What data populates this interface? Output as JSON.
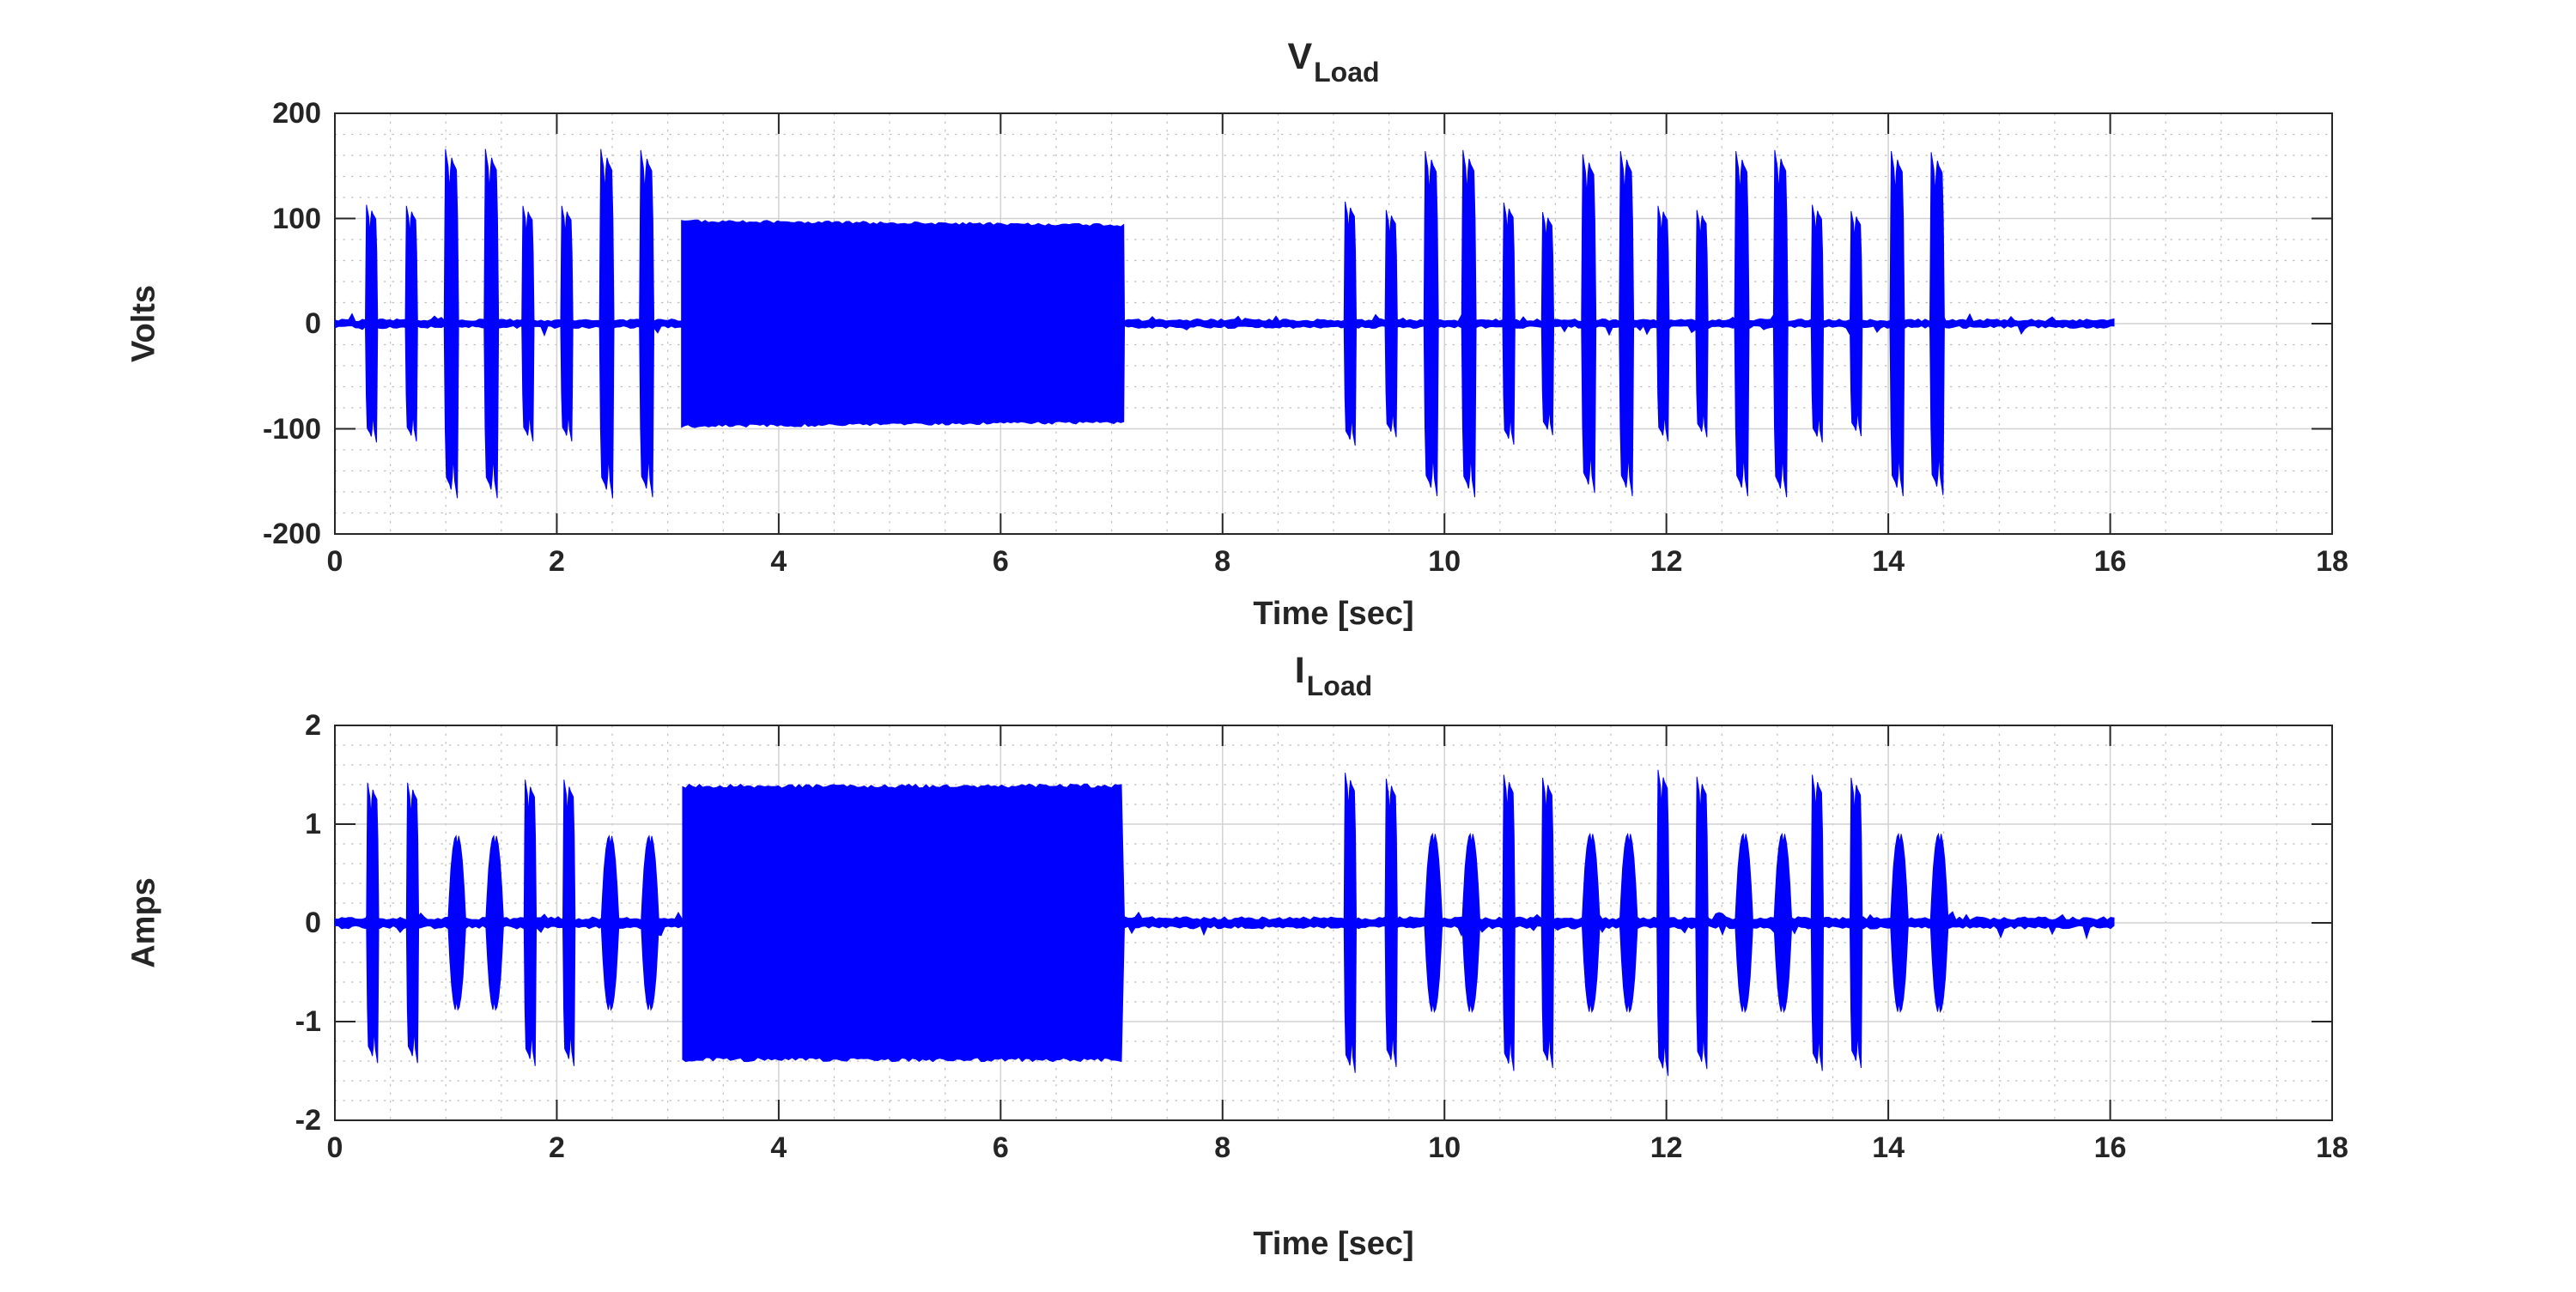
{
  "figure": {
    "background": "#ffffff",
    "trace_color": "#0000ff",
    "axis_color": "#262626",
    "text_color": "#252525",
    "major_grid_color": "#d2d2d2",
    "minor_grid_color": "#bfbfbf"
  },
  "chart_data": [
    {
      "type": "line",
      "title_main": "V",
      "title_sub": "Load",
      "xlabel": "Time [sec]",
      "ylabel": "Volts",
      "xlim": [
        0,
        18
      ],
      "ylim": [
        -200,
        200
      ],
      "xticks": [
        0,
        2,
        4,
        6,
        8,
        10,
        12,
        14,
        16,
        18
      ],
      "yticks": [
        200,
        100,
        0,
        -100,
        -200
      ],
      "x_minor_step": 0.5,
      "y_minor_step": 20,
      "grid": "on",
      "legend": "none",
      "series_name": "V_Load",
      "baseline": {
        "start": 0,
        "end": 16.05,
        "noise_amp": 4.5
      },
      "block": {
        "start": 3.12,
        "end": 7.12,
        "amp_start": 98,
        "amp_end": 94
      },
      "bursts": [
        {
          "t": 0.33,
          "a": 113,
          "w": 0.11,
          "shape": "notch"
        },
        {
          "t": 0.69,
          "a": 112,
          "w": 0.11,
          "shape": "notch"
        },
        {
          "t": 1.05,
          "a": 166,
          "w": 0.13,
          "shape": "notch"
        },
        {
          "t": 1.41,
          "a": 166,
          "w": 0.13,
          "shape": "notch"
        },
        {
          "t": 1.74,
          "a": 112,
          "w": 0.11,
          "shape": "notch"
        },
        {
          "t": 2.09,
          "a": 112,
          "w": 0.11,
          "shape": "notch"
        },
        {
          "t": 2.45,
          "a": 166,
          "w": 0.13,
          "shape": "notch"
        },
        {
          "t": 2.81,
          "a": 165,
          "w": 0.13,
          "shape": "notch"
        },
        {
          "t": 9.15,
          "a": 116,
          "w": 0.11,
          "shape": "notch"
        },
        {
          "t": 9.52,
          "a": 108,
          "w": 0.11,
          "shape": "notch"
        },
        {
          "t": 9.88,
          "a": 164,
          "w": 0.13,
          "shape": "notch"
        },
        {
          "t": 10.22,
          "a": 165,
          "w": 0.13,
          "shape": "notch"
        },
        {
          "t": 10.58,
          "a": 115,
          "w": 0.11,
          "shape": "notch"
        },
        {
          "t": 10.93,
          "a": 106,
          "w": 0.11,
          "shape": "notch"
        },
        {
          "t": 11.3,
          "a": 161,
          "w": 0.13,
          "shape": "notch"
        },
        {
          "t": 11.64,
          "a": 164,
          "w": 0.13,
          "shape": "notch"
        },
        {
          "t": 11.97,
          "a": 112,
          "w": 0.11,
          "shape": "notch"
        },
        {
          "t": 12.32,
          "a": 108,
          "w": 0.11,
          "shape": "notch"
        },
        {
          "t": 12.68,
          "a": 164,
          "w": 0.13,
          "shape": "notch"
        },
        {
          "t": 13.03,
          "a": 165,
          "w": 0.13,
          "shape": "notch"
        },
        {
          "t": 13.36,
          "a": 113,
          "w": 0.11,
          "shape": "notch"
        },
        {
          "t": 13.71,
          "a": 107,
          "w": 0.11,
          "shape": "notch"
        },
        {
          "t": 14.08,
          "a": 164,
          "w": 0.13,
          "shape": "notch"
        },
        {
          "t": 14.44,
          "a": 163,
          "w": 0.13,
          "shape": "notch"
        }
      ]
    },
    {
      "type": "line",
      "title_main": "I",
      "title_sub": "Load",
      "xlabel": "Time [sec]",
      "ylabel": "Amps",
      "xlim": [
        0,
        18
      ],
      "ylim": [
        -2,
        2
      ],
      "xticks": [
        0,
        2,
        4,
        6,
        8,
        10,
        12,
        14,
        16,
        18
      ],
      "yticks": [
        2,
        1,
        0,
        -1,
        -2
      ],
      "x_minor_step": 0.5,
      "y_minor_step": 0.2,
      "grid": "on",
      "legend": "none",
      "series_name": "I_Load",
      "baseline": {
        "start": 0,
        "end": 16.05,
        "noise_amp": 0.062
      },
      "block": {
        "start": 3.13,
        "end": 7.12,
        "amp_start": 1.39,
        "amp_end": 1.39
      },
      "bursts": [
        {
          "t": 0.34,
          "a": 1.42,
          "w": 0.11,
          "shape": "notch"
        },
        {
          "t": 0.7,
          "a": 1.42,
          "w": 0.11,
          "shape": "notch"
        },
        {
          "t": 1.1,
          "a": 0.88,
          "w": 0.16,
          "shape": "lobe"
        },
        {
          "t": 1.44,
          "a": 0.88,
          "w": 0.16,
          "shape": "lobe"
        },
        {
          "t": 1.76,
          "a": 1.45,
          "w": 0.11,
          "shape": "notch"
        },
        {
          "t": 2.11,
          "a": 1.45,
          "w": 0.11,
          "shape": "notch"
        },
        {
          "t": 2.48,
          "a": 0.88,
          "w": 0.16,
          "shape": "lobe"
        },
        {
          "t": 2.84,
          "a": 0.88,
          "w": 0.16,
          "shape": "lobe"
        },
        {
          "t": 9.15,
          "a": 1.52,
          "w": 0.11,
          "shape": "notch"
        },
        {
          "t": 9.52,
          "a": 1.46,
          "w": 0.11,
          "shape": "notch"
        },
        {
          "t": 9.9,
          "a": 0.9,
          "w": 0.16,
          "shape": "lobe"
        },
        {
          "t": 10.24,
          "a": 0.9,
          "w": 0.16,
          "shape": "lobe"
        },
        {
          "t": 10.58,
          "a": 1.5,
          "w": 0.11,
          "shape": "notch"
        },
        {
          "t": 10.93,
          "a": 1.47,
          "w": 0.11,
          "shape": "notch"
        },
        {
          "t": 11.32,
          "a": 0.9,
          "w": 0.16,
          "shape": "lobe"
        },
        {
          "t": 11.66,
          "a": 0.9,
          "w": 0.16,
          "shape": "lobe"
        },
        {
          "t": 11.97,
          "a": 1.55,
          "w": 0.11,
          "shape": "notch"
        },
        {
          "t": 12.32,
          "a": 1.48,
          "w": 0.11,
          "shape": "notch"
        },
        {
          "t": 12.7,
          "a": 0.9,
          "w": 0.16,
          "shape": "lobe"
        },
        {
          "t": 13.05,
          "a": 0.9,
          "w": 0.16,
          "shape": "lobe"
        },
        {
          "t": 13.36,
          "a": 1.5,
          "w": 0.11,
          "shape": "notch"
        },
        {
          "t": 13.71,
          "a": 1.47,
          "w": 0.11,
          "shape": "notch"
        },
        {
          "t": 14.1,
          "a": 0.9,
          "w": 0.16,
          "shape": "lobe"
        },
        {
          "t": 14.46,
          "a": 0.9,
          "w": 0.16,
          "shape": "lobe"
        }
      ]
    }
  ]
}
